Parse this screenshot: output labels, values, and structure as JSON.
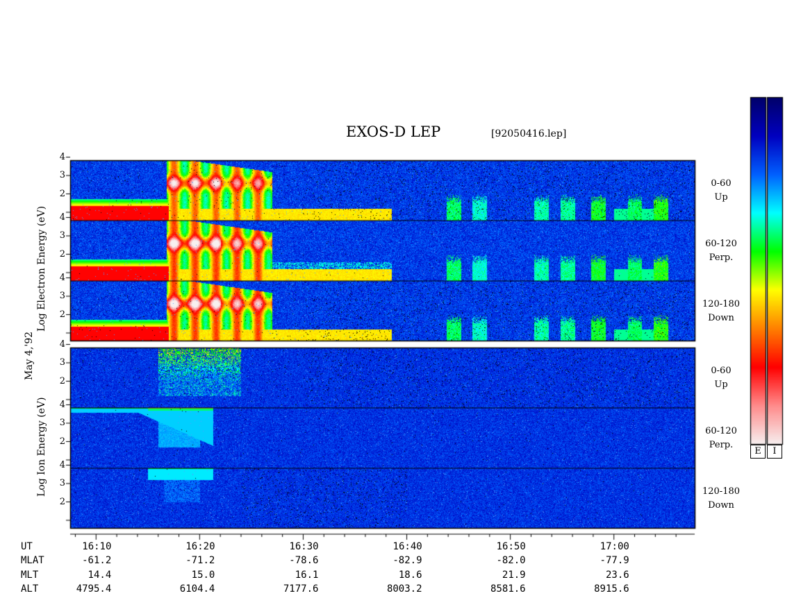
{
  "title": "EXOS-D LEP",
  "filename": "[92050416.lep]",
  "date_label": "May 4,'92",
  "electron_ylabel": "Log Electron Energy (eV)",
  "ion_ylabel": "Log Ion Energy (eV)",
  "channels": [
    {
      "line1": "0-60",
      "line2": "Up"
    },
    {
      "line1": "60-120",
      "line2": "Perp."
    },
    {
      "line1": "120-180",
      "line2": "Down"
    },
    {
      "line1": "0-60",
      "line2": "Up"
    },
    {
      "line1": "60-120",
      "line2": "Perp."
    },
    {
      "line1": "120-180",
      "line2": "Down"
    }
  ],
  "colorbar_labels": {
    "electron": "E",
    "ion": "I"
  },
  "ephemeris": {
    "row_labels": [
      "UT",
      "MLAT",
      "MLT",
      "ALT"
    ],
    "columns": [
      {
        "UT": "16:10",
        "MLAT": "-61.2",
        "MLT": "14.4",
        "ALT": "4795.4"
      },
      {
        "UT": "16:20",
        "MLAT": "-71.2",
        "MLT": "15.0",
        "ALT": "6104.4"
      },
      {
        "UT": "16:30",
        "MLAT": "-78.6",
        "MLT": "16.1",
        "ALT": "7177.6"
      },
      {
        "UT": "16:40",
        "MLAT": "-82.9",
        "MLT": "18.6",
        "ALT": "8003.2"
      },
      {
        "UT": "16:50",
        "MLAT": "-82.0",
        "MLT": "21.9",
        "ALT": "8581.6"
      },
      {
        "UT": "17:00",
        "MLAT": "-77.9",
        "MLT": "23.6",
        "ALT": "8915.6"
      }
    ]
  },
  "chart_data": {
    "type": "heatmap",
    "title": "EXOS-D LEP",
    "xlabel": "UT",
    "x_range_minutes_after_16_00": [
      7.5,
      67.8
    ],
    "x_ticks": [
      "16:10",
      "16:20",
      "16:30",
      "16:40",
      "16:50",
      "17:00"
    ],
    "y_ticks": [
      1,
      2,
      3,
      4
    ],
    "y_scale": "log10 energy (eV)",
    "panels": [
      {
        "species": "electron",
        "pitch_angle": "0-60",
        "direction": "Up"
      },
      {
        "species": "electron",
        "pitch_angle": "60-120",
        "direction": "Perp."
      },
      {
        "species": "electron",
        "pitch_angle": "120-180",
        "direction": "Down"
      },
      {
        "species": "ion",
        "pitch_angle": "0-60",
        "direction": "Up"
      },
      {
        "species": "ion",
        "pitch_angle": "60-120",
        "direction": "Perp."
      },
      {
        "species": "ion",
        "pitch_angle": "120-180",
        "direction": "Down"
      }
    ],
    "colorscale": [
      "#f7f0f0",
      "#ff8c8c",
      "#ff0000",
      "#ff8000",
      "#ffff00",
      "#00ff00",
      "#00ffff",
      "#0060ff",
      "#0000c0",
      "#00006a"
    ]
  }
}
